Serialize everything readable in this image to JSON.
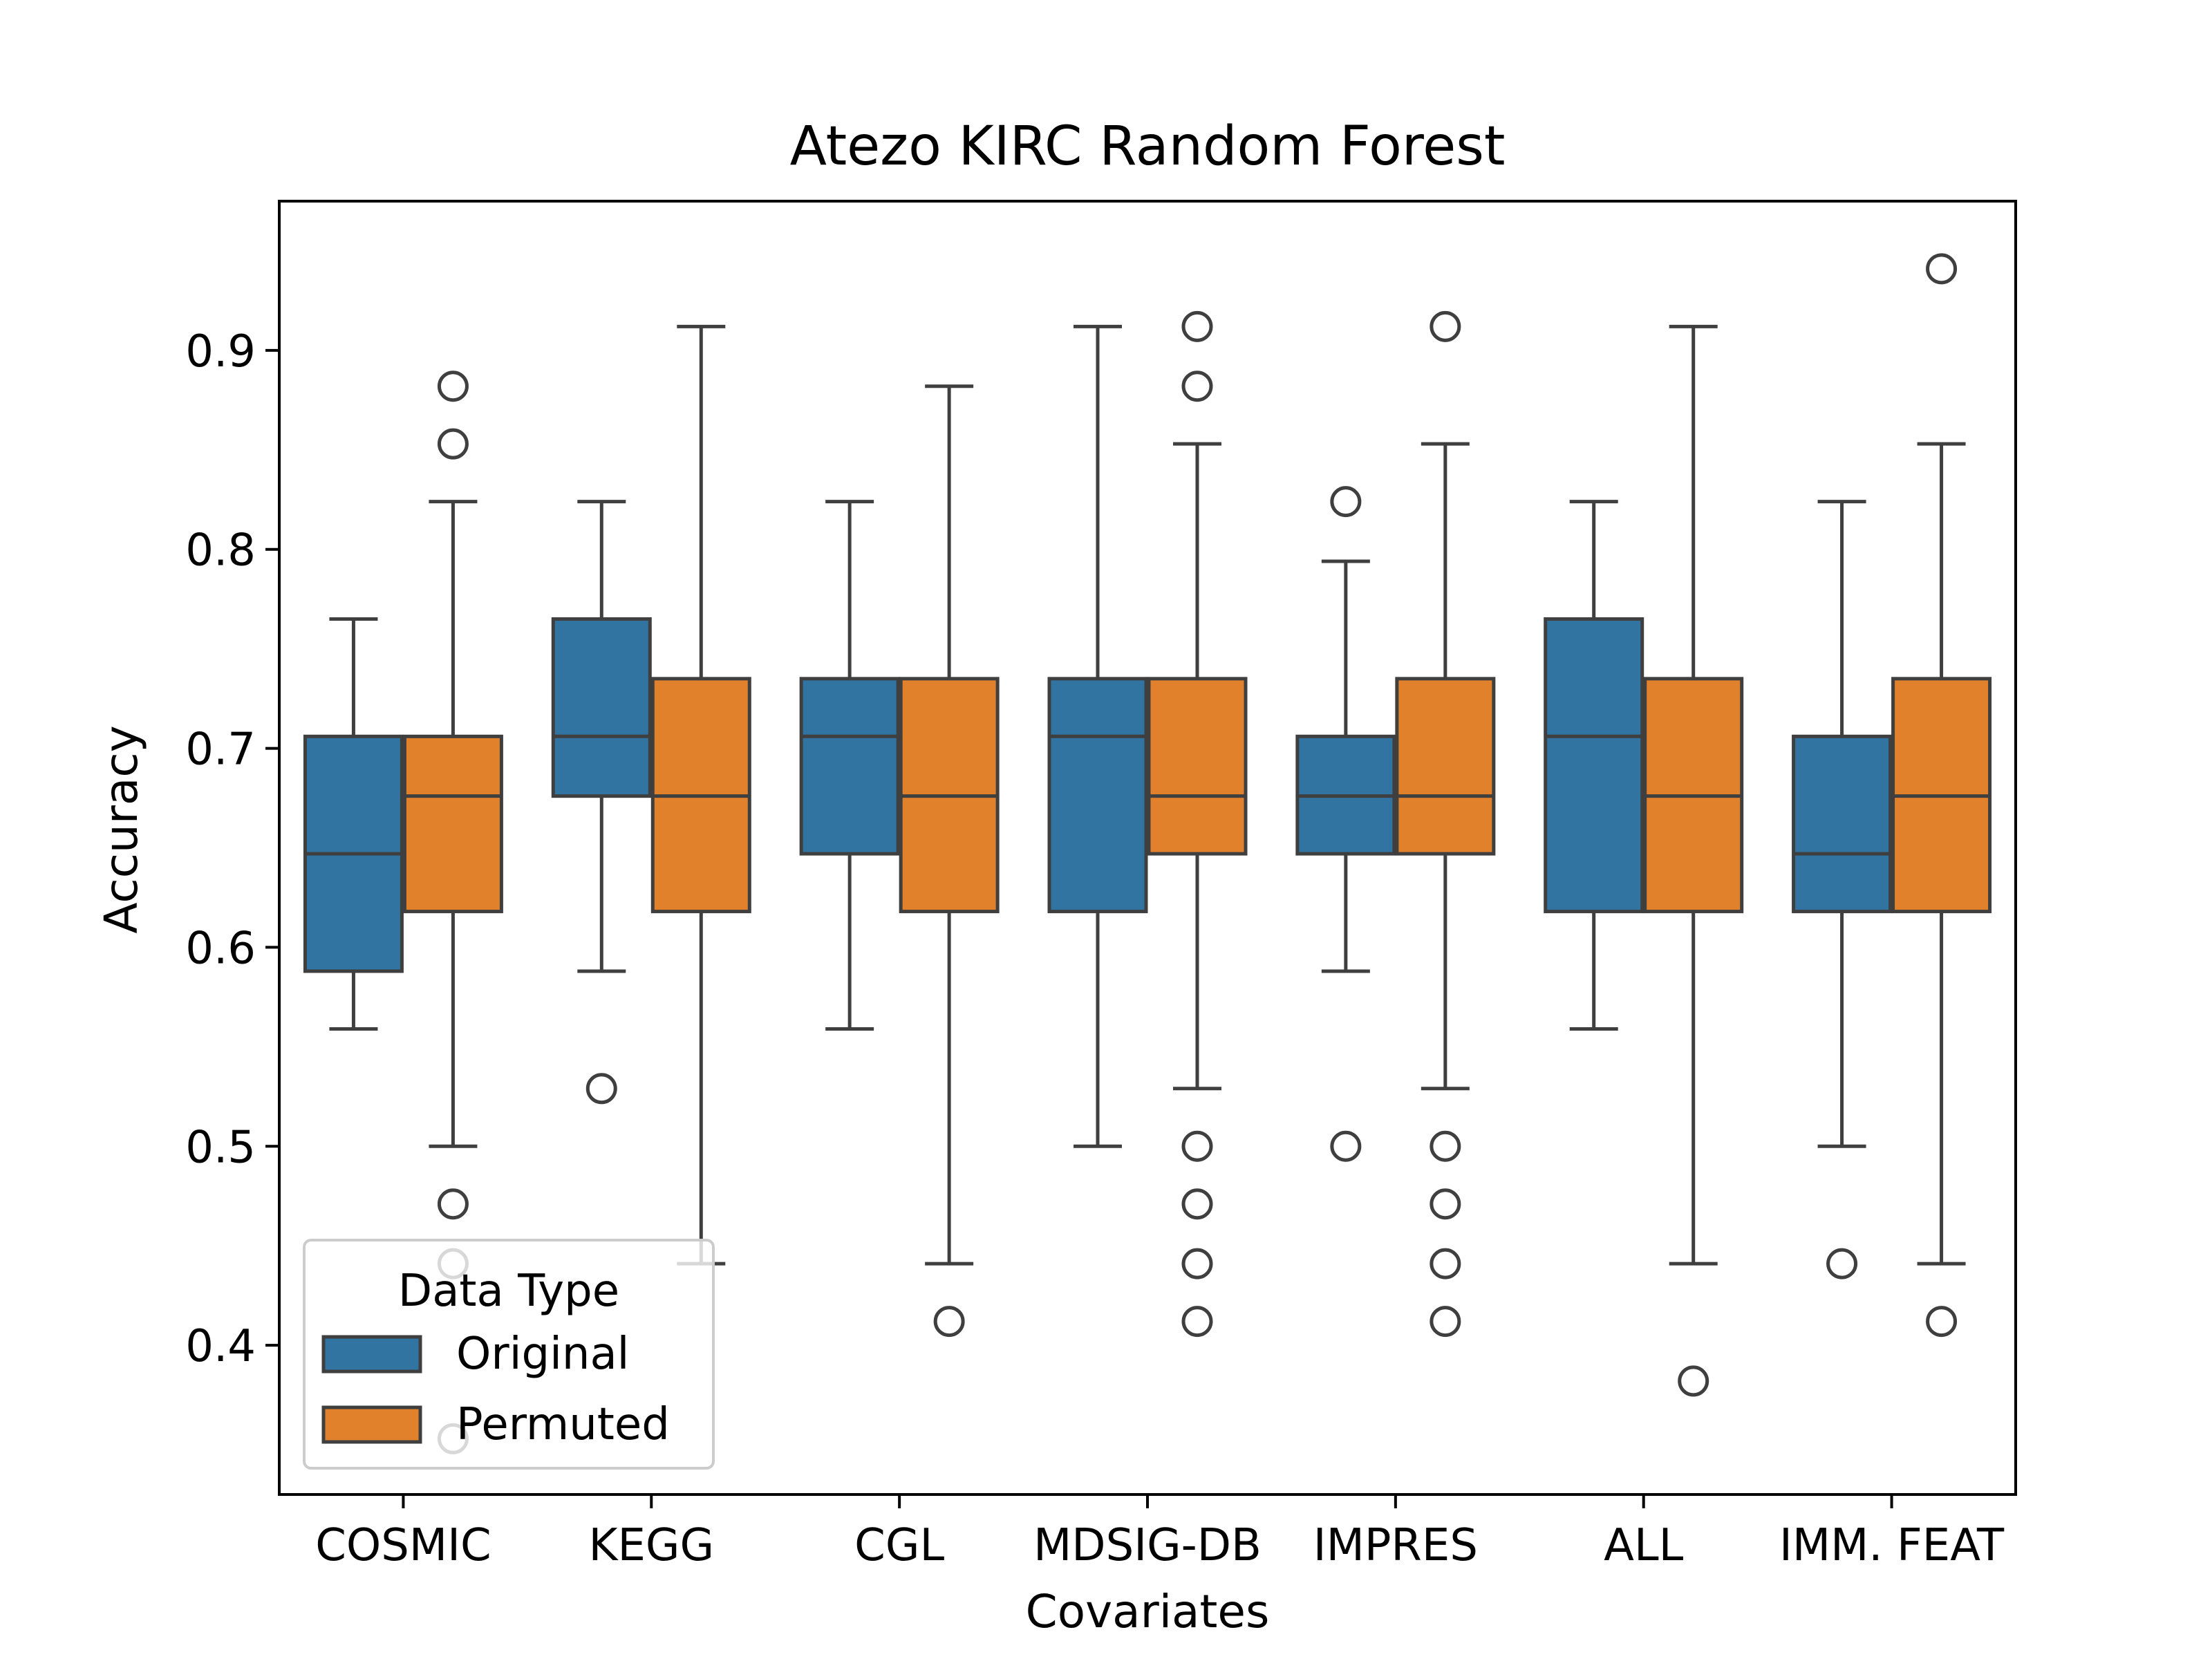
{
  "chart_data": {
    "type": "box",
    "title": "Atezo  KIRC  Random Forest",
    "xlabel": "Covariates",
    "ylabel": "Accuracy",
    "ylim": [
      0.325,
      0.975
    ],
    "yticks": [
      "0.4",
      "0.5",
      "0.6",
      "0.7",
      "0.8",
      "0.9"
    ],
    "categories": [
      "COSMIC",
      "KEGG",
      "CGL",
      "MDSIG-DB",
      "IMPRES",
      "ALL",
      "IMM. FEAT"
    ],
    "legend": {
      "title": "Data Type",
      "placement": "lower-left"
    },
    "series": [
      {
        "name": "Original",
        "color": "#3274a1",
        "boxes": [
          {
            "whislo": 0.559,
            "q1": 0.588,
            "med": 0.647,
            "q3": 0.706,
            "whishi": 0.765,
            "fliers": []
          },
          {
            "whislo": 0.588,
            "q1": 0.676,
            "med": 0.706,
            "q3": 0.765,
            "whishi": 0.824,
            "fliers": [
              0.529
            ]
          },
          {
            "whislo": 0.559,
            "q1": 0.647,
            "med": 0.706,
            "q3": 0.735,
            "whishi": 0.824,
            "fliers": []
          },
          {
            "whislo": 0.5,
            "q1": 0.618,
            "med": 0.706,
            "q3": 0.735,
            "whishi": 0.912,
            "fliers": []
          },
          {
            "whislo": 0.588,
            "q1": 0.647,
            "med": 0.676,
            "q3": 0.706,
            "whishi": 0.794,
            "fliers": [
              0.824,
              0.5
            ]
          },
          {
            "whislo": 0.559,
            "q1": 0.618,
            "med": 0.706,
            "q3": 0.765,
            "whishi": 0.824,
            "fliers": []
          },
          {
            "whislo": 0.5,
            "q1": 0.618,
            "med": 0.647,
            "q3": 0.706,
            "whishi": 0.824,
            "fliers": [
              0.441
            ]
          }
        ]
      },
      {
        "name": "Permuted",
        "color": "#e1812c",
        "boxes": [
          {
            "whislo": 0.5,
            "q1": 0.618,
            "med": 0.676,
            "q3": 0.706,
            "whishi": 0.824,
            "fliers": [
              0.882,
              0.853,
              0.471,
              0.441,
              0.353
            ]
          },
          {
            "whislo": 0.441,
            "q1": 0.618,
            "med": 0.676,
            "q3": 0.735,
            "whishi": 0.912,
            "fliers": []
          },
          {
            "whislo": 0.441,
            "q1": 0.618,
            "med": 0.676,
            "q3": 0.735,
            "whishi": 0.882,
            "fliers": [
              0.412
            ]
          },
          {
            "whislo": 0.529,
            "q1": 0.647,
            "med": 0.676,
            "q3": 0.735,
            "whishi": 0.853,
            "fliers": [
              0.912,
              0.882,
              0.5,
              0.471,
              0.441,
              0.412
            ]
          },
          {
            "whislo": 0.529,
            "q1": 0.647,
            "med": 0.676,
            "q3": 0.735,
            "whishi": 0.853,
            "fliers": [
              0.912,
              0.5,
              0.471,
              0.441,
              0.412
            ]
          },
          {
            "whislo": 0.441,
            "q1": 0.618,
            "med": 0.676,
            "q3": 0.735,
            "whishi": 0.912,
            "fliers": [
              0.382
            ]
          },
          {
            "whislo": 0.441,
            "q1": 0.618,
            "med": 0.676,
            "q3": 0.735,
            "whishi": 0.853,
            "fliers": [
              0.941,
              0.412
            ]
          }
        ]
      }
    ]
  }
}
